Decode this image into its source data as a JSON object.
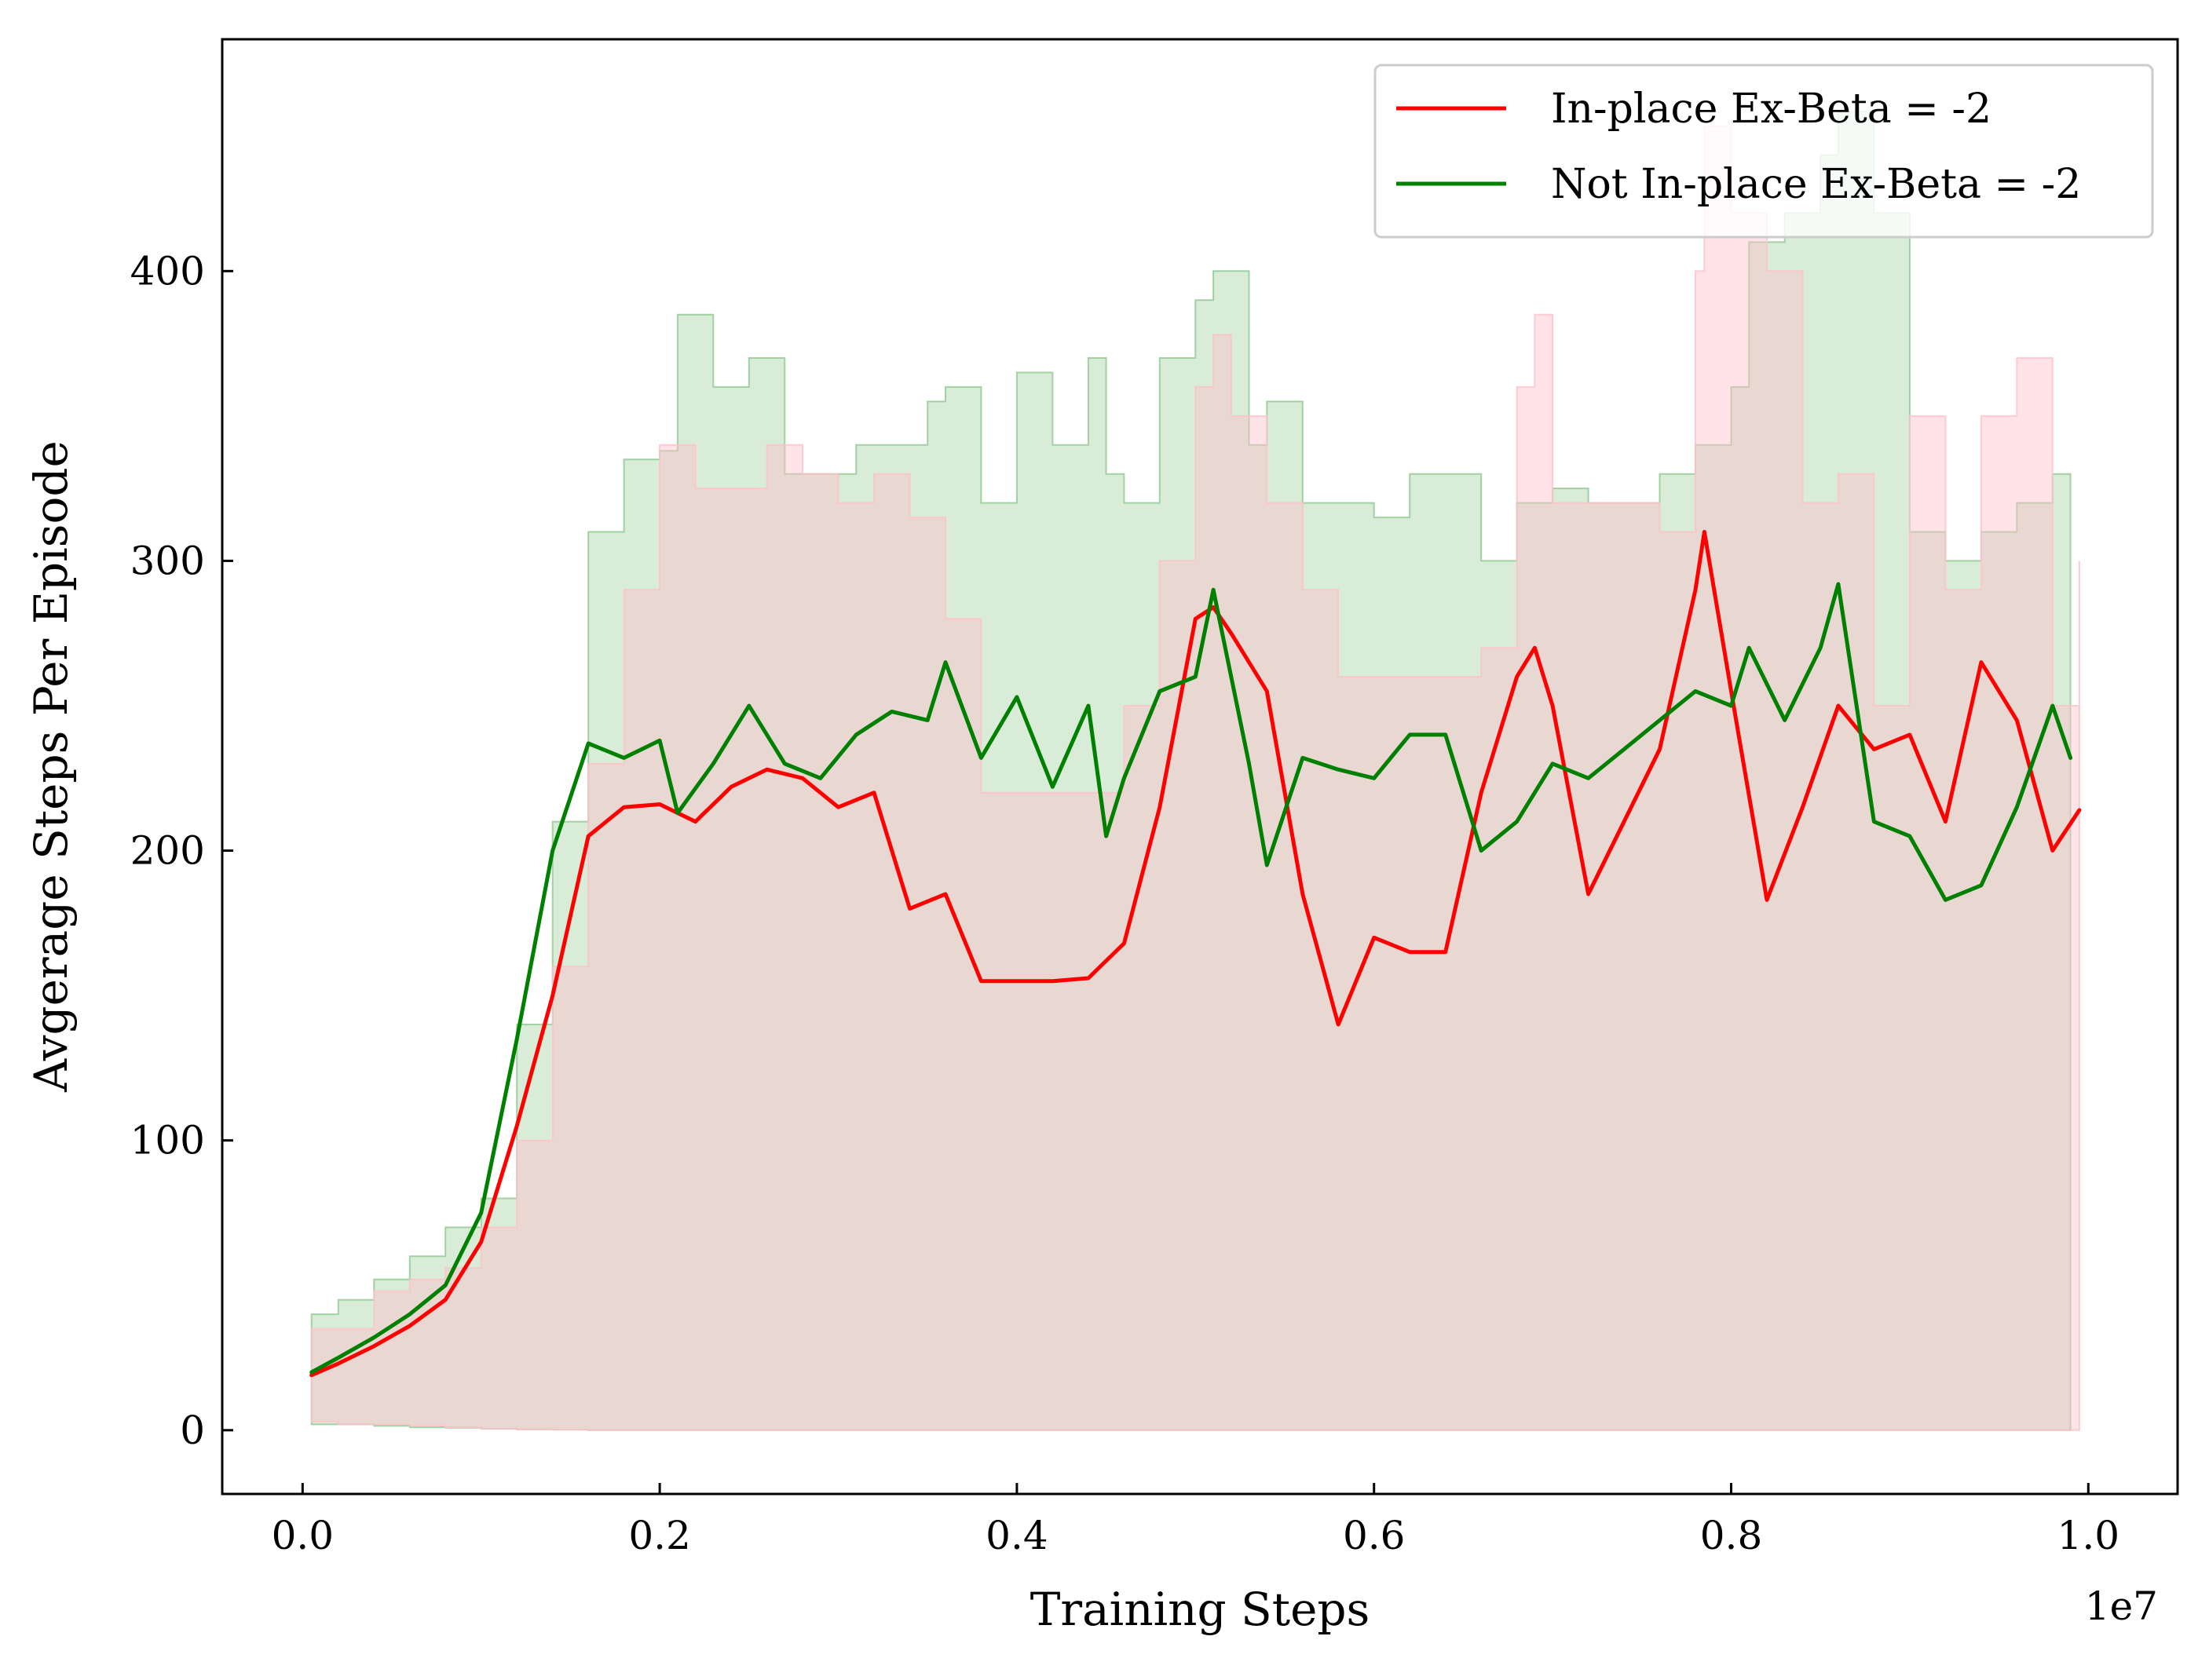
{
  "chart_data": {
    "type": "line",
    "title": "",
    "xlabel": "Training Steps",
    "ylabel": "Avgerage Steps Per Episode",
    "x_offset_label": "1e7",
    "xlim": [
      -0.045,
      1.05
    ],
    "ylim": [
      -22,
      480
    ],
    "x_ticks": [
      0.0,
      0.2,
      0.4,
      0.6,
      0.8,
      1.0
    ],
    "x_tick_labels": [
      "0.0",
      "0.2",
      "0.4",
      "0.6",
      "0.8",
      "1.0"
    ],
    "y_ticks": [
      0,
      100,
      200,
      300,
      400
    ],
    "y_tick_labels": [
      "0",
      "100",
      "200",
      "300",
      "400"
    ],
    "legend_position": "top-right",
    "grid": false,
    "series": [
      {
        "name": "In-place Ex-Beta = -2",
        "color": "#ff0000",
        "band_color": "#ffc0cb",
        "x": [
          0.005,
          0.02,
          0.04,
          0.06,
          0.08,
          0.1,
          0.12,
          0.14,
          0.16,
          0.18,
          0.2,
          0.22,
          0.24,
          0.26,
          0.28,
          0.3,
          0.32,
          0.34,
          0.36,
          0.38,
          0.4,
          0.42,
          0.44,
          0.46,
          0.48,
          0.5,
          0.51,
          0.52,
          0.54,
          0.56,
          0.58,
          0.6,
          0.62,
          0.64,
          0.66,
          0.68,
          0.69,
          0.7,
          0.72,
          0.74,
          0.76,
          0.78,
          0.785,
          0.8,
          0.82,
          0.84,
          0.86,
          0.88,
          0.9,
          0.92,
          0.94,
          0.96,
          0.98,
          0.995
        ],
        "values": [
          19,
          23,
          29,
          36,
          45,
          65,
          105,
          150,
          205,
          215,
          216,
          210,
          222,
          228,
          225,
          215,
          220,
          180,
          185,
          155,
          155,
          155,
          156,
          168,
          215,
          280,
          284,
          275,
          255,
          185,
          140,
          170,
          165,
          165,
          220,
          260,
          270,
          250,
          185,
          210,
          235,
          290,
          310,
          255,
          183,
          215,
          250,
          235,
          240,
          210,
          265,
          245,
          200,
          214
        ],
        "upper": [
          35,
          35,
          48,
          52,
          56,
          70,
          100,
          160,
          230,
          290,
          340,
          325,
          325,
          340,
          330,
          320,
          330,
          315,
          280,
          220,
          220,
          220,
          220,
          250,
          300,
          360,
          378,
          350,
          320,
          290,
          260,
          260,
          260,
          260,
          270,
          360,
          385,
          320,
          320,
          320,
          310,
          400,
          450,
          420,
          400,
          320,
          330,
          250,
          350,
          290,
          350,
          370,
          250,
          300
        ],
        "lower": [
          3,
          2,
          2,
          1.5,
          1,
          0.5,
          0.3,
          0.2,
          0,
          0,
          0,
          0,
          0,
          0,
          0,
          0,
          0,
          0,
          0,
          0,
          0,
          0,
          0,
          0,
          0,
          0,
          0,
          0,
          0,
          0,
          0,
          0,
          0,
          0,
          0,
          0,
          0,
          0,
          0,
          0,
          0,
          0,
          0,
          0,
          0,
          0,
          0,
          0,
          0,
          0,
          0,
          0,
          0,
          0
        ]
      },
      {
        "name": "Not In-place Ex-Beta = -2",
        "color": "#008000",
        "band_color": "#90c890",
        "x": [
          0.005,
          0.02,
          0.04,
          0.06,
          0.08,
          0.1,
          0.12,
          0.14,
          0.16,
          0.18,
          0.2,
          0.21,
          0.23,
          0.25,
          0.27,
          0.29,
          0.31,
          0.33,
          0.35,
          0.36,
          0.38,
          0.4,
          0.42,
          0.44,
          0.45,
          0.46,
          0.48,
          0.5,
          0.51,
          0.53,
          0.54,
          0.56,
          0.58,
          0.6,
          0.62,
          0.64,
          0.66,
          0.68,
          0.7,
          0.72,
          0.74,
          0.76,
          0.78,
          0.8,
          0.81,
          0.83,
          0.85,
          0.86,
          0.88,
          0.9,
          0.92,
          0.94,
          0.96,
          0.98,
          0.99
        ],
        "values": [
          20,
          25,
          32,
          40,
          50,
          75,
          135,
          200,
          237,
          232,
          238,
          213,
          230,
          250,
          230,
          225,
          240,
          248,
          245,
          265,
          232,
          253,
          222,
          250,
          205,
          225,
          255,
          260,
          290,
          230,
          195,
          232,
          228,
          225,
          240,
          240,
          200,
          210,
          230,
          225,
          235,
          245,
          255,
          250,
          270,
          245,
          270,
          292,
          210,
          205,
          183,
          188,
          215,
          250,
          232
        ],
        "upper": [
          40,
          45,
          52,
          60,
          70,
          80,
          140,
          210,
          310,
          335,
          338,
          385,
          360,
          370,
          330,
          330,
          340,
          340,
          355,
          360,
          320,
          365,
          340,
          370,
          330,
          320,
          370,
          390,
          400,
          340,
          355,
          320,
          320,
          315,
          330,
          330,
          300,
          320,
          325,
          320,
          320,
          330,
          340,
          360,
          410,
          420,
          440,
          455,
          420,
          310,
          300,
          310,
          320,
          330,
          305
        ],
        "lower": [
          2,
          2,
          1.5,
          1,
          0.8,
          0.5,
          0.3,
          0.2,
          0,
          0,
          0,
          0,
          0,
          0,
          0,
          0,
          0,
          0,
          0,
          0,
          0,
          0,
          0,
          0,
          0,
          0,
          0,
          0,
          0,
          0,
          0,
          0,
          0,
          0,
          0,
          0,
          0,
          0,
          0,
          0,
          0,
          0,
          0,
          0,
          0,
          0,
          0,
          0,
          0,
          0,
          0,
          0,
          0,
          0,
          0
        ]
      }
    ]
  }
}
